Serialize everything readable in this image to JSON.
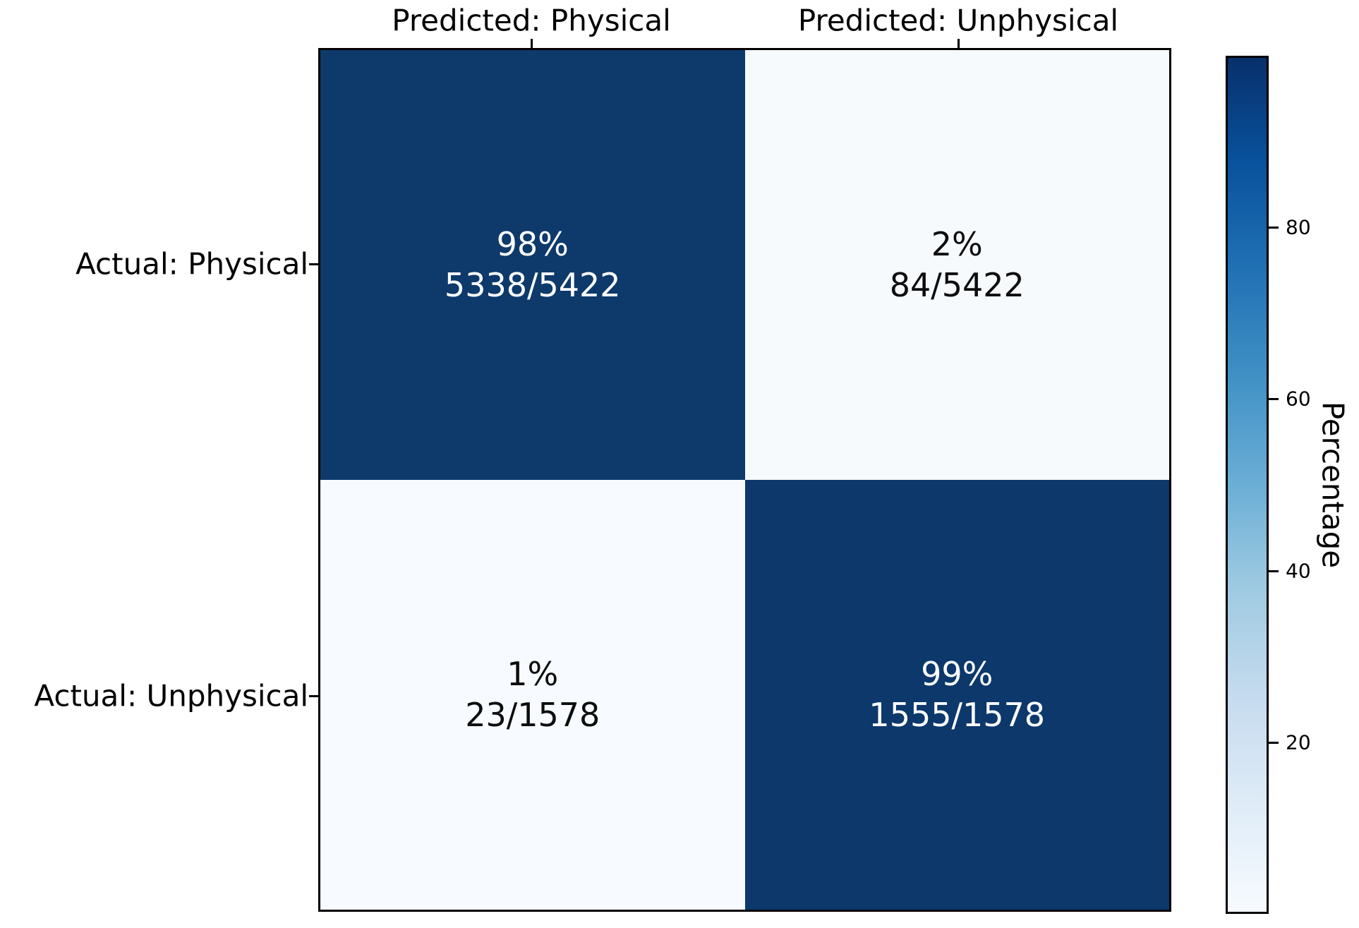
{
  "chart_data": {
    "type": "heatmap",
    "subtype": "confusion-matrix",
    "x_axis": {
      "tick_labels": [
        "Predicted: Physical",
        "Predicted: Unphysical"
      ]
    },
    "y_axis": {
      "tick_labels": [
        "Actual: Physical",
        "Actual: Unphysical"
      ]
    },
    "cells": [
      {
        "row_label": "Actual: Physical",
        "col_label": "Predicted: Physical",
        "percent_label": "98%",
        "fraction_label": "5338/5422",
        "value_percent": 98,
        "count": 5338,
        "total": 5422,
        "fill": "#0d396b",
        "text_color": "#ffffff"
      },
      {
        "row_label": "Actual: Physical",
        "col_label": "Predicted: Unphysical",
        "percent_label": "2%",
        "fraction_label": "84/5422",
        "value_percent": 2,
        "count": 84,
        "total": 5422,
        "fill": "#f6fafd",
        "text_color": "#0d0d0d"
      },
      {
        "row_label": "Actual: Unphysical",
        "col_label": "Predicted: Physical",
        "percent_label": "1%",
        "fraction_label": "23/1578",
        "value_percent": 1,
        "count": 23,
        "total": 1578,
        "fill": "#f7fbff",
        "text_color": "#0d0d0d"
      },
      {
        "row_label": "Actual: Unphysical",
        "col_label": "Predicted: Unphysical",
        "percent_label": "99%",
        "fraction_label": "1555/1578",
        "value_percent": 99,
        "count": 1555,
        "total": 1578,
        "fill": "#0c386b",
        "text_color": "#ffffff"
      }
    ],
    "colorbar": {
      "label": "Percentage",
      "tick_values": [
        80,
        60,
        40,
        20
      ],
      "tick_labels": [
        "80",
        "60",
        "40",
        "20"
      ],
      "range": [
        0,
        100
      ],
      "min_color": "#f7fbff",
      "max_color": "#08306b"
    },
    "grid": false,
    "legend": false
  }
}
